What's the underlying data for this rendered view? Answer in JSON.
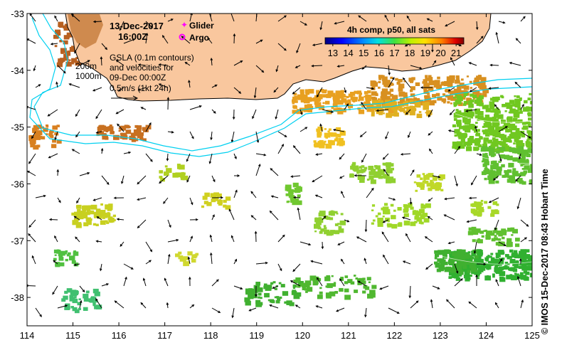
{
  "header": {
    "date": "13-Dec-2017",
    "time": "16:00Z",
    "glider_label": "Glider",
    "argo_label": "Argo"
  },
  "annotation": {
    "line1": "GSLA (0.1m contours)",
    "line2": "and velocities for",
    "line3": "09-Dec 00:00Z",
    "line4": "0.5m/s (1kt 24h)"
  },
  "depth_labels": [
    "200m",
    "1000m"
  ],
  "colorbar": {
    "title": "4h comp, p50, all sats",
    "ticks": [
      "13",
      "14",
      "15",
      "16",
      "17",
      "18",
      "19",
      "20",
      "21"
    ],
    "min": 12.5,
    "max": 21.5
  },
  "axes": {
    "lon_ticks": [
      "114",
      "115",
      "116",
      "117",
      "118",
      "119",
      "120",
      "121",
      "122",
      "123",
      "124",
      "125"
    ],
    "lat_ticks": [
      "-33",
      "-34",
      "-35",
      "-36",
      "-37",
      "-38"
    ],
    "lon_min": 114,
    "lon_max": 125,
    "lat_max": -33,
    "lat_min": -38.5
  },
  "credit": "© IMOS 15-Dec-2017 08:43 Hobart Time",
  "colors": {
    "land": "#F9C79E",
    "coast": "#000000",
    "isobath": "#00D0F0",
    "glider": "#FF00FF",
    "argo": "#FF00FF"
  }
}
